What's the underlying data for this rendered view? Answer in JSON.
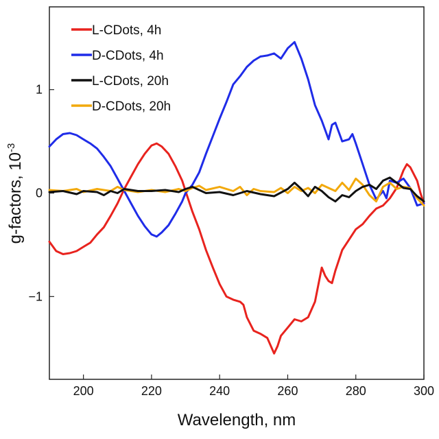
{
  "chart_data": {
    "type": "line",
    "xlabel": "Wavelength, nm",
    "ylabel": "g-factors, 10",
    "ylabel_exponent": "-3",
    "xlim": [
      190,
      300
    ],
    "ylim": [
      -1.8,
      1.8
    ],
    "xticks": [
      200,
      220,
      240,
      260,
      280,
      300
    ],
    "yticks": [
      -1,
      0,
      1
    ],
    "ytick_labels": [
      "−1",
      "0",
      "1"
    ],
    "legend_position": "top-left",
    "grid": false,
    "series": [
      {
        "name": "L-CDots, 4h",
        "color": "#e8231e",
        "points": [
          [
            190,
            -0.47
          ],
          [
            192,
            -0.56
          ],
          [
            194,
            -0.59
          ],
          [
            196,
            -0.58
          ],
          [
            198,
            -0.56
          ],
          [
            200,
            -0.52
          ],
          [
            202,
            -0.48
          ],
          [
            204,
            -0.4
          ],
          [
            206,
            -0.33
          ],
          [
            208,
            -0.22
          ],
          [
            210,
            -0.1
          ],
          [
            212,
            0.04
          ],
          [
            214,
            0.16
          ],
          [
            216,
            0.28
          ],
          [
            218,
            0.38
          ],
          [
            220,
            0.46
          ],
          [
            221.5,
            0.48
          ],
          [
            223,
            0.45
          ],
          [
            225,
            0.38
          ],
          [
            227,
            0.26
          ],
          [
            229,
            0.12
          ],
          [
            230,
            0.02
          ],
          [
            231,
            -0.08
          ],
          [
            232,
            -0.18
          ],
          [
            234,
            -0.35
          ],
          [
            236,
            -0.55
          ],
          [
            238,
            -0.72
          ],
          [
            240,
            -0.88
          ],
          [
            242,
            -1.0
          ],
          [
            244,
            -1.03
          ],
          [
            246,
            -1.05
          ],
          [
            247,
            -1.08
          ],
          [
            248,
            -1.2
          ],
          [
            250,
            -1.33
          ],
          [
            252,
            -1.36
          ],
          [
            254,
            -1.4
          ],
          [
            256,
            -1.55
          ],
          [
            257,
            -1.48
          ],
          [
            258,
            -1.38
          ],
          [
            260,
            -1.3
          ],
          [
            262,
            -1.22
          ],
          [
            264,
            -1.24
          ],
          [
            266,
            -1.2
          ],
          [
            268,
            -1.05
          ],
          [
            270,
            -0.72
          ],
          [
            271,
            -0.8
          ],
          [
            272,
            -0.85
          ],
          [
            273,
            -0.87
          ],
          [
            274,
            -0.75
          ],
          [
            276,
            -0.55
          ],
          [
            278,
            -0.45
          ],
          [
            280,
            -0.35
          ],
          [
            282,
            -0.3
          ],
          [
            284,
            -0.22
          ],
          [
            286,
            -0.15
          ],
          [
            288,
            -0.12
          ],
          [
            290,
            -0.05
          ],
          [
            292,
            0.05
          ],
          [
            294,
            0.22
          ],
          [
            295,
            0.28
          ],
          [
            296,
            0.25
          ],
          [
            298,
            0.12
          ],
          [
            299,
            0.0
          ],
          [
            300,
            -0.1
          ]
        ]
      },
      {
        "name": "D-CDots, 4h",
        "color": "#1f2ce8",
        "points": [
          [
            190,
            0.45
          ],
          [
            192,
            0.52
          ],
          [
            194,
            0.57
          ],
          [
            196,
            0.58
          ],
          [
            198,
            0.56
          ],
          [
            200,
            0.52
          ],
          [
            202,
            0.48
          ],
          [
            204,
            0.43
          ],
          [
            206,
            0.35
          ],
          [
            208,
            0.26
          ],
          [
            210,
            0.14
          ],
          [
            212,
            0.02
          ],
          [
            214,
            -0.1
          ],
          [
            216,
            -0.22
          ],
          [
            218,
            -0.32
          ],
          [
            220,
            -0.4
          ],
          [
            221.5,
            -0.42
          ],
          [
            223,
            -0.38
          ],
          [
            225,
            -0.31
          ],
          [
            227,
            -0.2
          ],
          [
            229,
            -0.08
          ],
          [
            230,
            0.0
          ],
          [
            232,
            0.08
          ],
          [
            234,
            0.2
          ],
          [
            236,
            0.38
          ],
          [
            238,
            0.55
          ],
          [
            240,
            0.72
          ],
          [
            242,
            0.88
          ],
          [
            244,
            1.05
          ],
          [
            246,
            1.13
          ],
          [
            248,
            1.22
          ],
          [
            250,
            1.28
          ],
          [
            252,
            1.32
          ],
          [
            254,
            1.33
          ],
          [
            256,
            1.35
          ],
          [
            258,
            1.3
          ],
          [
            260,
            1.4
          ],
          [
            262,
            1.46
          ],
          [
            264,
            1.3
          ],
          [
            266,
            1.1
          ],
          [
            268,
            0.85
          ],
          [
            270,
            0.7
          ],
          [
            272,
            0.52
          ],
          [
            273,
            0.66
          ],
          [
            274,
            0.68
          ],
          [
            276,
            0.5
          ],
          [
            278,
            0.52
          ],
          [
            279,
            0.57
          ],
          [
            280,
            0.48
          ],
          [
            282,
            0.28
          ],
          [
            284,
            0.08
          ],
          [
            286,
            -0.06
          ],
          [
            288,
            0.02
          ],
          [
            289,
            -0.05
          ],
          [
            290,
            0.12
          ],
          [
            292,
            0.1
          ],
          [
            294,
            0.14
          ],
          [
            296,
            0.05
          ],
          [
            298,
            -0.12
          ],
          [
            300,
            -0.1
          ]
        ]
      },
      {
        "name": "L-CDots, 20h",
        "color": "#111111",
        "points": [
          [
            190,
            0.01
          ],
          [
            194,
            0.02
          ],
          [
            198,
            -0.01
          ],
          [
            200,
            0.02
          ],
          [
            204,
            0.01
          ],
          [
            206,
            -0.02
          ],
          [
            208,
            0.02
          ],
          [
            210,
            0.0
          ],
          [
            212,
            0.04
          ],
          [
            216,
            0.02
          ],
          [
            220,
            0.02
          ],
          [
            224,
            0.03
          ],
          [
            228,
            0.01
          ],
          [
            230,
            0.04
          ],
          [
            232,
            0.06
          ],
          [
            234,
            0.03
          ],
          [
            236,
            0.0
          ],
          [
            240,
            0.01
          ],
          [
            244,
            -0.02
          ],
          [
            248,
            0.02
          ],
          [
            252,
            -0.01
          ],
          [
            256,
            -0.03
          ],
          [
            260,
            0.04
          ],
          [
            262,
            0.1
          ],
          [
            264,
            0.04
          ],
          [
            266,
            -0.03
          ],
          [
            268,
            0.06
          ],
          [
            270,
            0.02
          ],
          [
            272,
            -0.04
          ],
          [
            274,
            -0.08
          ],
          [
            276,
            -0.02
          ],
          [
            278,
            -0.04
          ],
          [
            280,
            0.02
          ],
          [
            282,
            0.06
          ],
          [
            284,
            0.08
          ],
          [
            286,
            0.04
          ],
          [
            288,
            0.12
          ],
          [
            290,
            0.15
          ],
          [
            292,
            0.1
          ],
          [
            294,
            0.05
          ],
          [
            296,
            0.04
          ],
          [
            298,
            -0.03
          ],
          [
            300,
            -0.08
          ]
        ]
      },
      {
        "name": "D-CDots, 20h",
        "color": "#f2a90c",
        "points": [
          [
            190,
            0.03
          ],
          [
            194,
            0.02
          ],
          [
            198,
            0.04
          ],
          [
            200,
            0.01
          ],
          [
            204,
            0.04
          ],
          [
            208,
            0.02
          ],
          [
            210,
            0.06
          ],
          [
            212,
            0.03
          ],
          [
            216,
            0.01
          ],
          [
            220,
            0.03
          ],
          [
            224,
            0.01
          ],
          [
            228,
            0.04
          ],
          [
            230,
            0.02
          ],
          [
            232,
            0.05
          ],
          [
            234,
            0.07
          ],
          [
            236,
            0.03
          ],
          [
            240,
            0.06
          ],
          [
            244,
            0.02
          ],
          [
            246,
            0.06
          ],
          [
            248,
            -0.02
          ],
          [
            250,
            0.04
          ],
          [
            252,
            0.02
          ],
          [
            256,
            0.01
          ],
          [
            258,
            0.05
          ],
          [
            260,
            0.0
          ],
          [
            262,
            0.06
          ],
          [
            264,
            0.02
          ],
          [
            266,
            0.05
          ],
          [
            268,
            0.0
          ],
          [
            270,
            0.08
          ],
          [
            272,
            0.05
          ],
          [
            274,
            0.02
          ],
          [
            276,
            0.1
          ],
          [
            278,
            0.03
          ],
          [
            280,
            0.14
          ],
          [
            282,
            0.08
          ],
          [
            284,
            -0.02
          ],
          [
            286,
            -0.08
          ],
          [
            288,
            0.06
          ],
          [
            290,
            0.1
          ],
          [
            292,
            0.04
          ],
          [
            294,
            0.06
          ],
          [
            296,
            0.05
          ],
          [
            298,
            -0.05
          ],
          [
            300,
            -0.12
          ]
        ]
      }
    ]
  }
}
